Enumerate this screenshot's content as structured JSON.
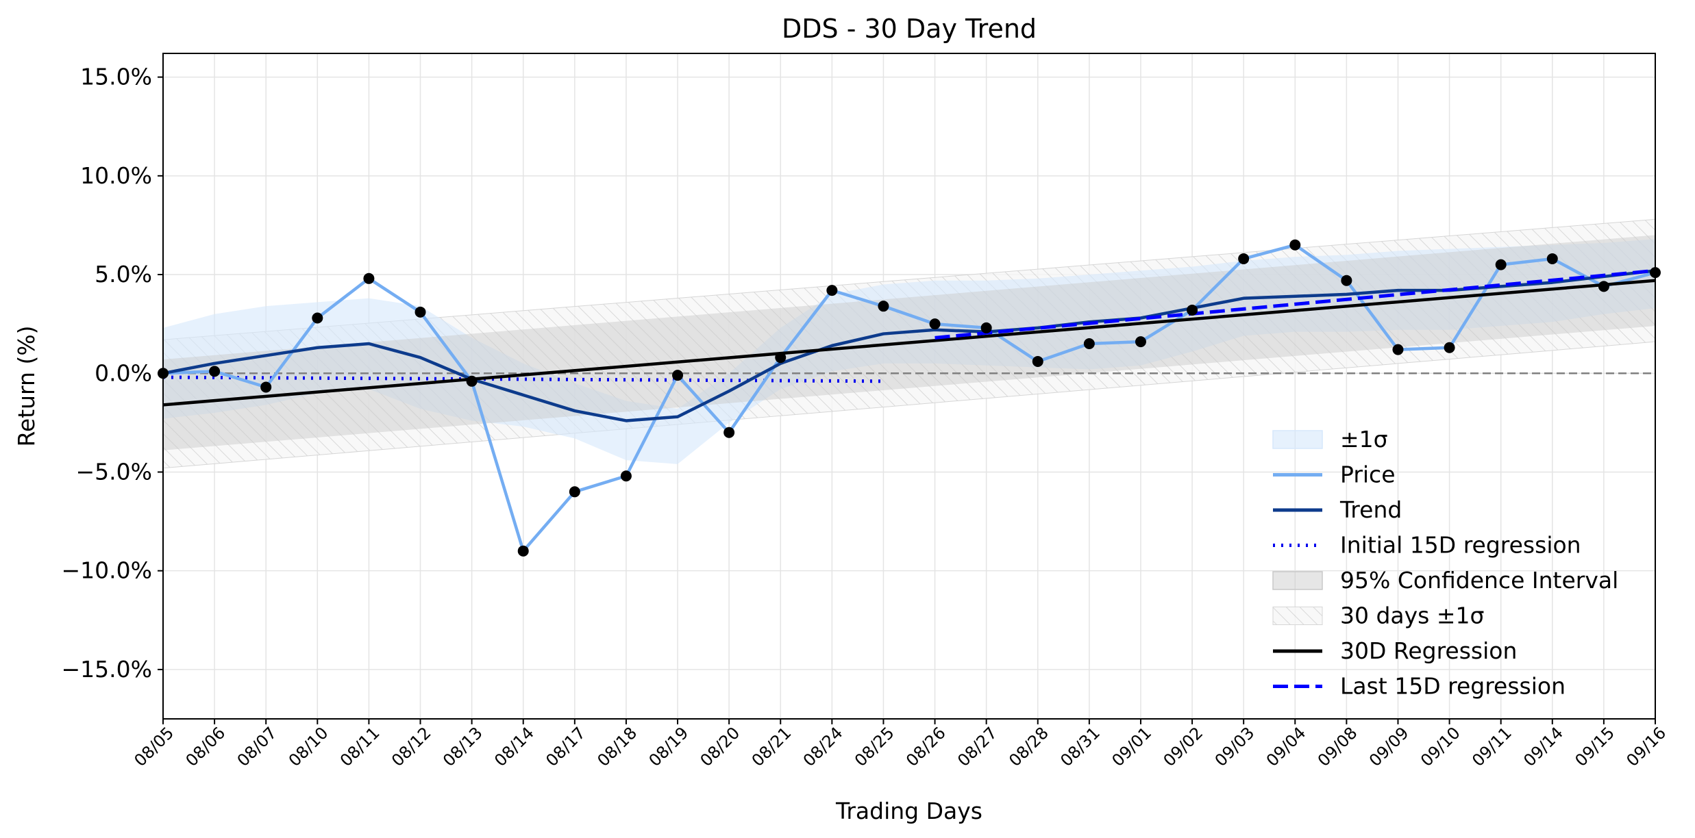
{
  "chart_data": {
    "type": "line",
    "title": "DDS - 30 Day Trend",
    "xlabel": "Trading Days",
    "ylabel": "Return (%)",
    "ylim": [
      -17.5,
      16.2
    ],
    "yticks": [
      -15,
      -10,
      -5,
      0,
      5,
      10,
      15
    ],
    "ytick_labels": [
      "−15.0%",
      "−10.0%",
      "−5.0%",
      "0.0%",
      "5.0%",
      "10.0%",
      "15.0%"
    ],
    "grid": true,
    "legend_position": "lower-right",
    "categories": [
      "08/05",
      "08/06",
      "08/07",
      "08/10",
      "08/11",
      "08/12",
      "08/13",
      "08/14",
      "08/17",
      "08/18",
      "08/19",
      "08/20",
      "08/21",
      "08/24",
      "08/25",
      "08/26",
      "08/27",
      "08/28",
      "08/31",
      "09/01",
      "09/02",
      "09/03",
      "09/04",
      "09/08",
      "09/09",
      "09/10",
      "09/11",
      "09/14",
      "09/15",
      "09/16"
    ],
    "series": [
      {
        "name": "Price",
        "color": "#74adf2",
        "style": "solid",
        "markers": true,
        "values": [
          0.0,
          0.1,
          -0.7,
          2.8,
          4.8,
          3.1,
          -0.4,
          -9.0,
          -6.0,
          -5.2,
          -0.1,
          -3.0,
          0.8,
          4.2,
          3.4,
          2.5,
          2.3,
          0.6,
          1.5,
          1.6,
          3.2,
          5.8,
          6.5,
          4.7,
          1.2,
          1.3,
          5.5,
          5.8,
          4.4,
          5.1
        ]
      },
      {
        "name": "Trend",
        "color": "#0d3b8c",
        "style": "solid",
        "values": [
          0.0,
          0.5,
          0.9,
          1.3,
          1.5,
          0.8,
          -0.3,
          -1.1,
          -1.9,
          -2.4,
          -2.2,
          -0.9,
          0.5,
          1.4,
          2.0,
          2.2,
          2.1,
          2.3,
          2.6,
          2.8,
          3.3,
          3.8,
          3.9,
          4.0,
          4.2,
          4.2,
          4.4,
          4.6,
          4.9,
          5.2
        ]
      },
      {
        "name": "Initial 15D regression",
        "color": "#0000ee",
        "style": "dotted",
        "x_range": [
          0,
          14
        ],
        "y_range": [
          -0.2,
          -0.4
        ]
      },
      {
        "name": "30D Regression",
        "color": "#000000",
        "style": "solid",
        "x_range": [
          0,
          29
        ],
        "y_range": [
          -1.6,
          4.7
        ]
      },
      {
        "name": "Last 15D regression",
        "color": "#0000ff",
        "style": "dashed",
        "x_range": [
          15,
          29
        ],
        "y_range": [
          1.8,
          5.2
        ]
      }
    ],
    "bands": [
      {
        "name": "±1σ",
        "color": "#d6e7fb",
        "upper": [
          2.3,
          3.0,
          3.4,
          3.6,
          3.8,
          3.4,
          1.8,
          0.5,
          -0.5,
          -1.4,
          -1.8,
          0.0,
          2.3,
          4.0,
          4.5,
          4.7,
          4.7,
          4.8,
          5.0,
          5.2,
          5.4,
          5.7,
          5.9,
          6.0,
          6.2,
          6.3,
          6.4,
          6.5,
          6.6,
          6.8
        ],
        "lower": [
          -2.3,
          -2.0,
          -1.6,
          -1.0,
          -0.8,
          -1.8,
          -2.4,
          -2.7,
          -3.3,
          -4.4,
          -4.6,
          -2.5,
          -0.8,
          0.1,
          0.5,
          0.5,
          0.4,
          0.3,
          0.2,
          0.4,
          1.1,
          1.9,
          2.1,
          2.1,
          2.2,
          2.2,
          2.4,
          2.6,
          3.0,
          3.3
        ]
      },
      {
        "name": "95% Confidence Interval",
        "color": "#c8c8c8",
        "x_range": [
          0,
          29
        ],
        "upper_range": [
          0.7,
          7.0
        ],
        "lower_range": [
          -3.9,
          2.4
        ]
      },
      {
        "name": "30 days ±1σ",
        "color": "#dddddd",
        "hatched": true,
        "x_range": [
          0,
          29
        ],
        "upper_range": [
          1.7,
          7.8
        ],
        "lower_range": [
          -4.8,
          1.6
        ]
      }
    ],
    "reference_line": {
      "y": 0,
      "color": "#808080",
      "style": "dashed"
    },
    "legend": [
      "±1σ",
      "Price",
      "Trend",
      "Initial 15D regression",
      "95% Confidence Interval",
      "30 days ±1σ",
      "30D Regression",
      "Last 15D regression"
    ]
  }
}
